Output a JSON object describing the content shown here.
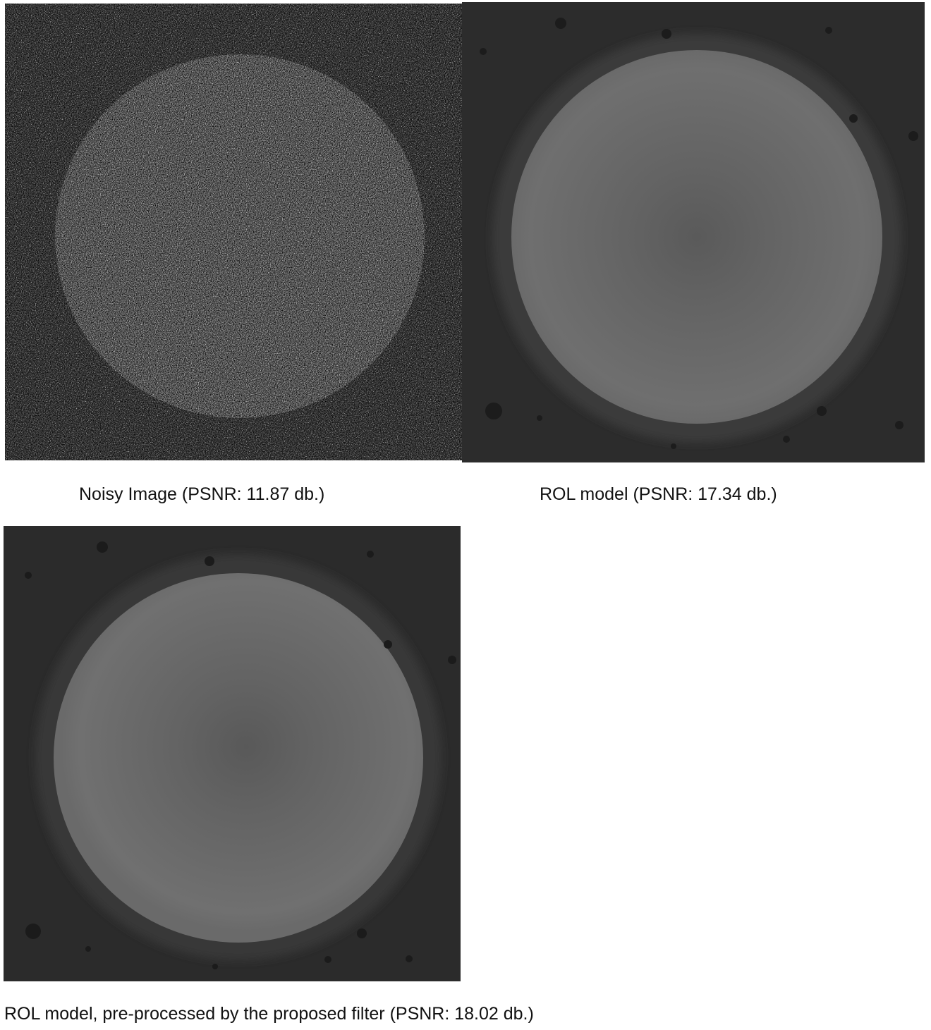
{
  "figure": {
    "panels": [
      {
        "id": "noisy",
        "caption": "Noisy Image (PSNR: 11.87 db.)"
      },
      {
        "id": "rol",
        "caption": "ROL model (PSNR: 17.34 db.)"
      },
      {
        "id": "rol-filtered",
        "caption": "ROL model, pre-processed by the proposed filter (PSNR: 18.02 db.)"
      }
    ]
  },
  "colors": {
    "background": "#ffffff",
    "noisy_bg": "#4a4a4a",
    "noisy_disk": "#9a9a9a",
    "denoised_bg": "#2b2b2b",
    "denoised_disk": "#6e6e6e",
    "denoised_center": "#5a5a5a"
  }
}
